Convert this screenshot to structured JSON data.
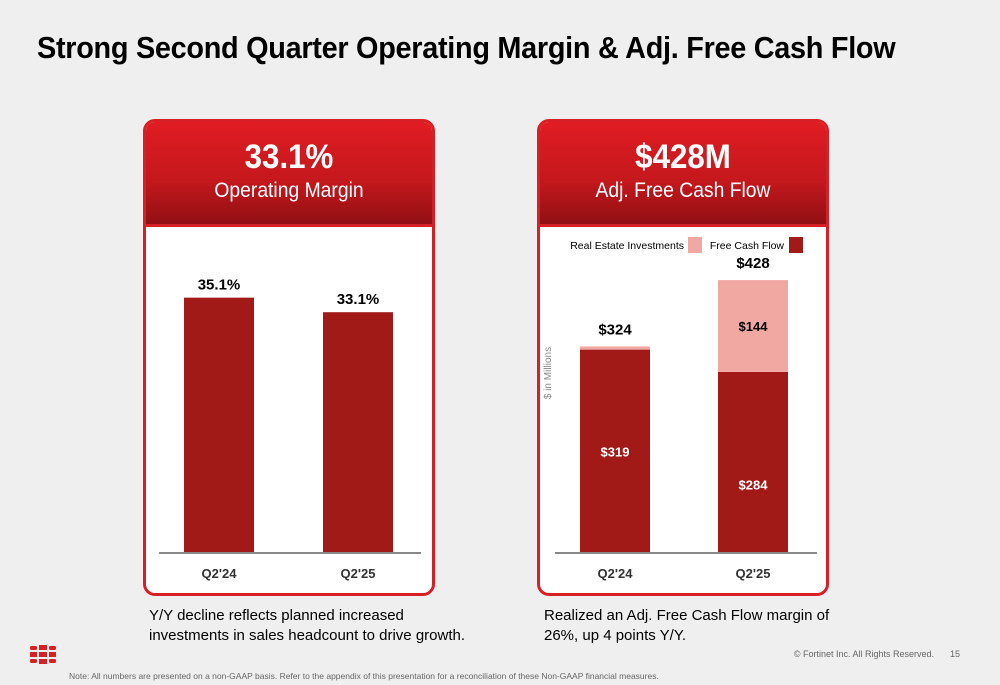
{
  "title": "Strong Second Quarter Operating Margin & Adj. Free Cash Flow",
  "left_card": {
    "headline": "33.1%",
    "subheadline": "Operating Margin",
    "caption_line1": "Y/Y decline reflects planned increased",
    "caption_line2": "investments in sales headcount to drive growth."
  },
  "right_card": {
    "headline": "$428M",
    "subheadline": "Adj. Free Cash Flow",
    "caption_line1": "Realized an Adj. Free Cash Flow margin of",
    "caption_line2": "26%, up 4 points Y/Y."
  },
  "chart_data": [
    {
      "type": "bar",
      "categories": [
        "Q2'24",
        "Q2'25"
      ],
      "values": [
        35.1,
        33.1
      ],
      "data_labels": [
        "35.1%",
        "33.1%"
      ],
      "ylim": [
        0,
        40
      ],
      "grid": false,
      "colors": {
        "bar": "#a21a17",
        "axis": "#888888"
      }
    },
    {
      "type": "bar",
      "stacked": true,
      "categories": [
        "Q2'24",
        "Q2'25"
      ],
      "ylabel": "$ in Millions",
      "ylim": [
        0,
        460
      ],
      "grid": false,
      "legend_position": "top",
      "series": [
        {
          "name": "Free Cash Flow",
          "values": [
            319,
            284
          ],
          "data_labels": [
            "$319",
            "$284"
          ],
          "color": "#a21a17"
        },
        {
          "name": "Real Estate Investments",
          "values": [
            5,
            144
          ],
          "data_labels": [
            "",
            "$144"
          ],
          "color": "#f1a8a2"
        }
      ],
      "totals": [
        324,
        428
      ],
      "total_labels": [
        "$324",
        "$428"
      ],
      "legend_order": [
        "Real Estate Investments",
        "Free Cash Flow"
      ]
    }
  ],
  "footer": {
    "copyright": "© Fortinet Inc. All Rights Reserved.",
    "page_number": "15",
    "note": "Note: All numbers are presented on a non-GAAP basis. Refer to the appendix of this presentation for a reconciliation of these Non-GAAP financial measures."
  },
  "icons": {
    "logo": "fortinet-logo-icon"
  }
}
